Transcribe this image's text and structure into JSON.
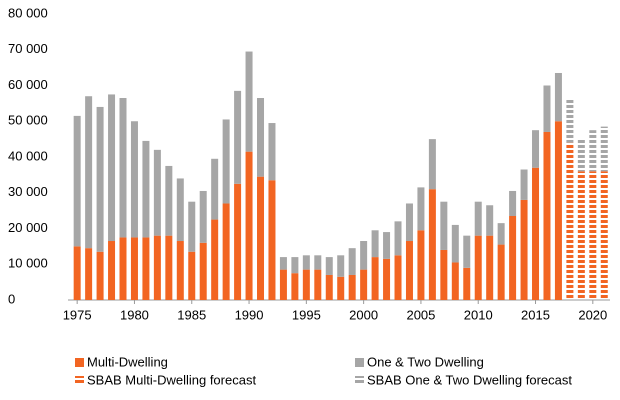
{
  "chart_data": {
    "type": "stacked_bar",
    "x": [
      1975,
      1976,
      1977,
      1978,
      1979,
      1980,
      1981,
      1982,
      1983,
      1984,
      1985,
      1986,
      1987,
      1988,
      1989,
      1990,
      1991,
      1992,
      1993,
      1994,
      1995,
      1996,
      1997,
      1998,
      1999,
      2000,
      2001,
      2002,
      2003,
      2004,
      2005,
      2006,
      2007,
      2008,
      2009,
      2010,
      2011,
      2012,
      2013,
      2014,
      2015,
      2016,
      2017,
      2018,
      2019,
      2020,
      2021
    ],
    "series": [
      {
        "name": "Multi-Dwelling",
        "color": "#f26522",
        "style": "solid",
        "values": [
          15000,
          14500,
          13500,
          16500,
          17500,
          17500,
          17500,
          18000,
          18000,
          16500,
          13500,
          16000,
          22500,
          27000,
          32500,
          41500,
          34500,
          33500,
          8500,
          7500,
          8500,
          8500,
          7000,
          6500,
          7000,
          8500,
          12000,
          11500,
          12500,
          16500,
          19500,
          31000,
          14000,
          10500,
          9000,
          18000,
          18000,
          15500,
          23500,
          28000,
          37000,
          47000,
          50000,
          null,
          null,
          null,
          null
        ]
      },
      {
        "name": "One & Two Dwelling",
        "color": "#a6a6a6",
        "style": "solid",
        "values": [
          36500,
          42500,
          40500,
          41000,
          39000,
          32500,
          27000,
          24000,
          19500,
          17500,
          14000,
          14500,
          17000,
          23500,
          26000,
          28000,
          22000,
          16000,
          3500,
          4500,
          4000,
          4000,
          5000,
          6000,
          7500,
          8000,
          7500,
          7500,
          9500,
          10500,
          12000,
          14000,
          13500,
          10500,
          9000,
          9500,
          8500,
          6000,
          7000,
          8500,
          10500,
          13000,
          13500,
          null,
          null,
          null,
          null
        ]
      },
      {
        "name": "SBAB Multi-Dwelling forecast",
        "color": "#f26522",
        "style": "dashed",
        "values": [
          null,
          null,
          null,
          null,
          null,
          null,
          null,
          null,
          null,
          null,
          null,
          null,
          null,
          null,
          null,
          null,
          null,
          null,
          null,
          null,
          null,
          null,
          null,
          null,
          null,
          null,
          null,
          null,
          null,
          null,
          null,
          null,
          null,
          null,
          null,
          null,
          null,
          null,
          null,
          null,
          null,
          null,
          null,
          44000,
          36000,
          36000,
          36000
        ]
      },
      {
        "name": "SBAB One & Two Dwelling forecast",
        "color": "#a6a6a6",
        "style": "dashed",
        "values": [
          null,
          null,
          null,
          null,
          null,
          null,
          null,
          null,
          null,
          null,
          null,
          null,
          null,
          null,
          null,
          null,
          null,
          null,
          null,
          null,
          null,
          null,
          null,
          null,
          null,
          null,
          null,
          null,
          null,
          null,
          null,
          null,
          null,
          null,
          null,
          null,
          null,
          null,
          null,
          null,
          null,
          null,
          null,
          12500,
          9000,
          11500,
          12500
        ]
      }
    ],
    "xlim": [
      1974.2,
      2021.5
    ],
    "xticks": [
      1975,
      1980,
      1985,
      1990,
      1995,
      2000,
      2005,
      2010,
      2015,
      2020
    ],
    "ylim": [
      0,
      80000
    ],
    "yticks": [
      0,
      {
        "value": 10000,
        "label": "10 000"
      },
      {
        "value": 20000,
        "label": "20 000"
      },
      {
        "value": 30000,
        "label": "30 000"
      },
      {
        "value": 40000,
        "label": "40 000"
      },
      {
        "value": 50000,
        "label": "50 000"
      },
      {
        "value": 60000,
        "label": "60 000"
      },
      {
        "value": 70000,
        "label": "70 000"
      },
      {
        "value": 80000,
        "label": "80 000"
      }
    ],
    "legend": "bottom"
  }
}
